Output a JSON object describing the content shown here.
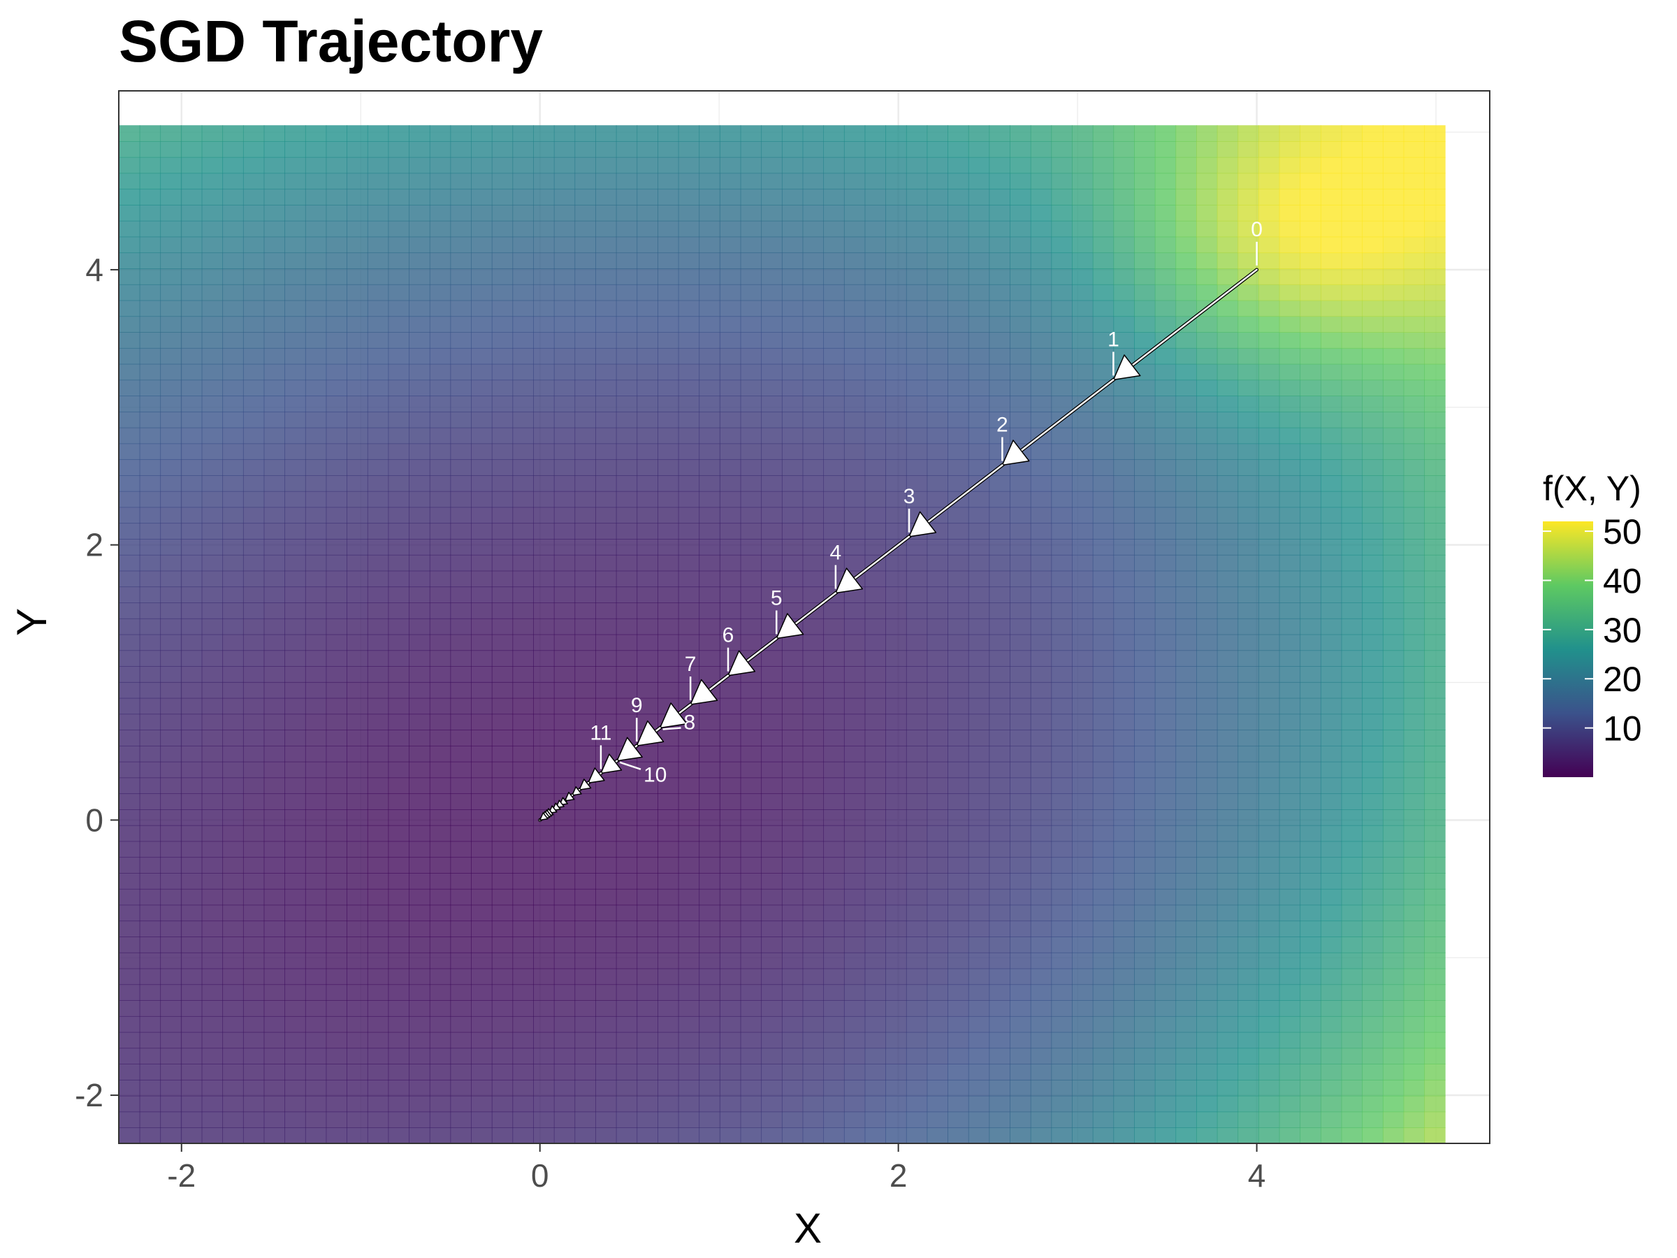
{
  "chart_data": {
    "type": "heatmap",
    "title": "SGD Trajectory",
    "xlabel": "X",
    "ylabel": "Y",
    "xlim": [
      -2.35,
      5.3
    ],
    "ylim": [
      -2.35,
      5.3
    ],
    "surface_x_range": [
      -2.35,
      5.05
    ],
    "surface_y_range": [
      -2.35,
      5.05
    ],
    "x_ticks": [
      -2,
      0,
      2,
      4
    ],
    "y_ticks": [
      -2,
      0,
      2,
      4
    ],
    "x_tick_labels": [
      "-2",
      "0",
      "2",
      "4"
    ],
    "y_tick_labels": [
      "-2",
      "0",
      "2",
      "4"
    ],
    "grid": true,
    "colormap": "viridis",
    "colormap_stops": [
      "#440154",
      "#3b528b",
      "#21918c",
      "#5ec962",
      "#fde725"
    ],
    "surface_alpha": 0.8,
    "legend": {
      "title": "f(X, Y)",
      "position": "right",
      "range": [
        0,
        52
      ],
      "ticks": [
        10,
        20,
        30,
        40,
        50
      ],
      "tick_labels": [
        "10",
        "20",
        "30",
        "40",
        "50"
      ]
    },
    "trajectory": {
      "color": "#ffffff",
      "points": [
        {
          "step": "0",
          "x": 4.0,
          "y": 4.0
        },
        {
          "step": "1",
          "x": 3.2,
          "y": 3.2
        },
        {
          "step": "2",
          "x": 2.58,
          "y": 2.58
        },
        {
          "step": "3",
          "x": 2.06,
          "y": 2.06
        },
        {
          "step": "4",
          "x": 1.65,
          "y": 1.65
        },
        {
          "step": "5",
          "x": 1.32,
          "y": 1.32
        },
        {
          "step": "6",
          "x": 1.05,
          "y": 1.05
        },
        {
          "step": "7",
          "x": 0.84,
          "y": 0.84
        },
        {
          "step": "8",
          "x": 0.67,
          "y": 0.67
        },
        {
          "step": "9",
          "x": 0.54,
          "y": 0.54
        },
        {
          "step": "10",
          "x": 0.43,
          "y": 0.43
        },
        {
          "step": "11",
          "x": 0.34,
          "y": 0.34
        },
        {
          "step": "",
          "x": 0.27,
          "y": 0.27
        },
        {
          "step": "",
          "x": 0.22,
          "y": 0.22
        },
        {
          "step": "",
          "x": 0.18,
          "y": 0.18
        },
        {
          "step": "",
          "x": 0.14,
          "y": 0.14
        },
        {
          "step": "",
          "x": 0.11,
          "y": 0.11
        },
        {
          "step": "",
          "x": 0.09,
          "y": 0.09
        },
        {
          "step": "",
          "x": 0.07,
          "y": 0.07
        },
        {
          "step": "",
          "x": 0.05,
          "y": 0.05
        },
        {
          "step": "",
          "x": 0.03,
          "y": 0.03
        },
        {
          "step": "",
          "x": 0.02,
          "y": 0.02
        },
        {
          "step": "",
          "x": 0.01,
          "y": 0.01
        },
        {
          "step": "",
          "x": 0.0,
          "y": 0.0
        }
      ]
    }
  }
}
